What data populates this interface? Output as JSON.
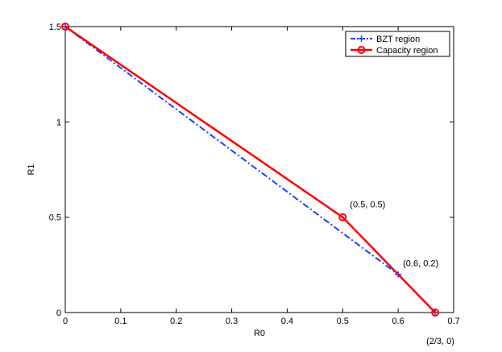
{
  "chart_data": {
    "type": "line",
    "xlabel": "R0",
    "ylabel": "R1",
    "xlim": [
      0,
      0.7
    ],
    "ylim": [
      0,
      1.5
    ],
    "x_ticks": [
      "0",
      "0.1",
      "0.2",
      "0.3",
      "0.4",
      "0.5",
      "0.6",
      "0.7"
    ],
    "y_ticks": [
      "0",
      "0.5",
      "1",
      "1.5"
    ],
    "grid": false,
    "legend_position": "top-right",
    "series": [
      {
        "name": "BZT region",
        "color": "#1f3fff",
        "line_style": "dash-dot",
        "marker": "plus",
        "x": [
          0,
          0.6,
          0.6667
        ],
        "y": [
          1.5,
          0.2,
          0
        ]
      },
      {
        "name": "Capacity region",
        "color": "#ff0000",
        "line_style": "solid",
        "marker": "circle",
        "x": [
          0,
          0.5,
          0.6667
        ],
        "y": [
          1.5,
          0.5,
          0
        ]
      }
    ],
    "annotations": [
      {
        "text": "(0.5, 0.5)",
        "x": 0.5,
        "y": 0.5
      },
      {
        "text": "(0.6, 0.2)",
        "x": 0.6,
        "y": 0.2
      },
      {
        "text": "(2/3, 0)",
        "x": 0.6667,
        "y": 0
      }
    ]
  }
}
